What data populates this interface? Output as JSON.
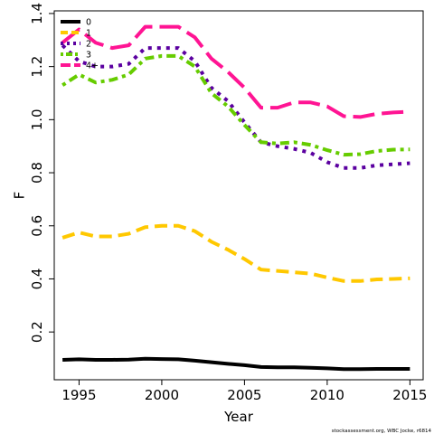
{
  "chart_data": {
    "type": "line",
    "title": "",
    "xlabel": "Year",
    "ylabel": "F",
    "xlim": [
      1993.5,
      2015.8
    ],
    "ylim": [
      0.02,
      1.41
    ],
    "x_ticks": [
      "1995",
      "2000",
      "2005",
      "2010",
      "2015"
    ],
    "y_ticks": [
      "0.2",
      "0.4",
      "0.6",
      "0.8",
      "1.0",
      "1.2",
      "1.4"
    ],
    "legend_position": "top-left",
    "grid": false,
    "x": [
      1994,
      1995,
      1996,
      1997,
      1998,
      1999,
      2000,
      2001,
      2002,
      2003,
      2004,
      2005,
      2006,
      2007,
      2008,
      2009,
      2010,
      2011,
      2012,
      2013,
      2014,
      2015
    ],
    "series": [
      {
        "name": "0",
        "color": "#000000",
        "dash": "solid",
        "values": [
          0.095,
          0.097,
          0.095,
          0.095,
          0.096,
          0.099,
          0.098,
          0.097,
          0.092,
          0.086,
          0.08,
          0.075,
          0.068,
          0.067,
          0.067,
          0.065,
          0.063,
          0.06,
          0.06,
          0.061,
          0.061,
          0.061
        ]
      },
      {
        "name": "1",
        "color": "#FFC800",
        "dash": "long",
        "values": [
          0.555,
          0.575,
          0.56,
          0.56,
          0.57,
          0.595,
          0.6,
          0.6,
          0.58,
          0.54,
          0.51,
          0.475,
          0.435,
          0.43,
          0.425,
          0.42,
          0.405,
          0.392,
          0.392,
          0.398,
          0.4,
          0.402
        ]
      },
      {
        "name": "2",
        "color": "#5B00A0",
        "dash": "dotted",
        "values": [
          1.28,
          1.22,
          1.2,
          1.2,
          1.21,
          1.27,
          1.27,
          1.27,
          1.22,
          1.12,
          1.07,
          0.99,
          0.915,
          0.9,
          0.89,
          0.875,
          0.84,
          0.818,
          0.818,
          0.828,
          0.832,
          0.836
        ]
      },
      {
        "name": "3",
        "color": "#66CC00",
        "dash": "dashdot",
        "values": [
          1.13,
          1.17,
          1.14,
          1.15,
          1.17,
          1.23,
          1.24,
          1.24,
          1.2,
          1.1,
          1.05,
          0.98,
          0.915,
          0.91,
          0.915,
          0.905,
          0.885,
          0.868,
          0.87,
          0.882,
          0.887,
          0.888
        ]
      },
      {
        "name": "4+",
        "color": "#FF1493",
        "dash": "longdash",
        "values": [
          1.29,
          1.34,
          1.29,
          1.27,
          1.28,
          1.35,
          1.35,
          1.35,
          1.31,
          1.23,
          1.18,
          1.12,
          1.045,
          1.045,
          1.065,
          1.065,
          1.05,
          1.013,
          1.01,
          1.022,
          1.027,
          1.03
        ]
      }
    ],
    "annotations": [
      "stockassessment.org, WBC Jocke, r6814"
    ]
  }
}
